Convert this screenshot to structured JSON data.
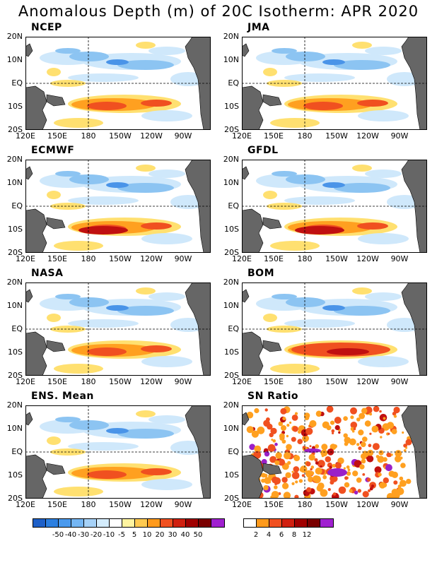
{
  "title": "Anomalous Depth (m) of 20C Isotherm: APR 2020",
  "lat_labels": [
    "20N",
    "10N",
    "EQ",
    "10S",
    "20S"
  ],
  "lon_labels": [
    "120E",
    "150E",
    "180",
    "150W",
    "120W",
    "90W"
  ],
  "panels": [
    {
      "label": "NCEP"
    },
    {
      "label": "JMA"
    },
    {
      "label": "ECMWF"
    },
    {
      "label": "GFDL"
    },
    {
      "label": "NASA"
    },
    {
      "label": "BOM"
    },
    {
      "label": "ENS. Mean"
    },
    {
      "label": "SN Ratio"
    }
  ],
  "depth_colorbar": {
    "tick_labels": [
      "-50",
      "-40",
      "-30",
      "-20",
      "-10",
      "-5",
      "5",
      "10",
      "20",
      "30",
      "40",
      "50"
    ],
    "colors": [
      "#1e60c8",
      "#2c7fe0",
      "#4a9aee",
      "#74b6f4",
      "#a6d2f8",
      "#d4ecfc",
      "#ffffff",
      "#fff4a0",
      "#ffca50",
      "#ff9a1c",
      "#f05020",
      "#d02010",
      "#a00000",
      "#7a0000",
      "#a020d0"
    ]
  },
  "sn_colorbar": {
    "tick_labels": [
      "2",
      "4",
      "6",
      "8",
      "12"
    ],
    "colors": [
      "#ffffff",
      "#ff9a1c",
      "#f05020",
      "#d02010",
      "#a00000",
      "#7a0000",
      "#a020d0"
    ]
  },
  "map_colors": {
    "land": "#666666",
    "ocean": "#ffffff",
    "warm_light": "#ffe070",
    "warm_mid": "#ffa020",
    "warm_strong": "#f05020",
    "warm_max": "#c01010",
    "cool_light": "#cfe8fb",
    "cool_mid": "#8cc4f2",
    "cool_strong": "#4a94e8",
    "sn_extreme": "#9a20c8"
  }
}
